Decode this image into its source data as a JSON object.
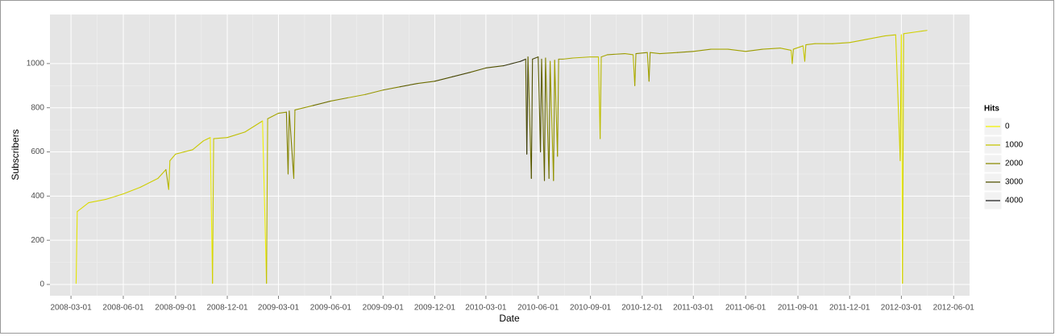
{
  "chart_data": {
    "type": "line",
    "x_label": "Date",
    "y_label": "Subscribers",
    "x": [
      "2008-03-10",
      "2008-03-12",
      "2008-04-01",
      "2008-05-01",
      "2008-06-01",
      "2008-07-01",
      "2008-08-01",
      "2008-08-15",
      "2008-08-20",
      "2008-08-22",
      "2008-09-01",
      "2008-10-01",
      "2008-10-20",
      "2008-11-01",
      "2008-11-05",
      "2008-11-07",
      "2008-12-01",
      "2009-01-01",
      "2009-02-01",
      "2009-02-08",
      "2009-02-10",
      "2009-03-01",
      "2009-03-15",
      "2009-03-18",
      "2009-03-20",
      "2009-03-28",
      "2009-03-30",
      "2009-05-01",
      "2009-06-01",
      "2009-07-01",
      "2009-08-01",
      "2009-09-01",
      "2009-10-01",
      "2009-11-01",
      "2009-12-01",
      "2010-01-01",
      "2010-02-01",
      "2010-03-01",
      "2010-04-01",
      "2010-05-01",
      "2010-05-10",
      "2010-05-12",
      "2010-05-14",
      "2010-05-20",
      "2010-05-22",
      "2010-06-01",
      "2010-06-05",
      "2010-06-07",
      "2010-06-12",
      "2010-06-14",
      "2010-06-20",
      "2010-06-22",
      "2010-06-28",
      "2010-06-30",
      "2010-07-05",
      "2010-07-07",
      "2010-07-15",
      "2010-08-01",
      "2010-09-01",
      "2010-09-15",
      "2010-09-18",
      "2010-09-20",
      "2010-10-01",
      "2010-11-01",
      "2010-11-15",
      "2010-11-18",
      "2010-11-20",
      "2010-12-10",
      "2010-12-13",
      "2010-12-15",
      "2011-01-01",
      "2011-02-01",
      "2011-03-01",
      "2011-04-01",
      "2011-05-01",
      "2011-06-01",
      "2011-07-01",
      "2011-08-01",
      "2011-08-20",
      "2011-08-22",
      "2011-08-24",
      "2011-09-10",
      "2011-09-13",
      "2011-09-15",
      "2011-10-01",
      "2011-11-01",
      "2011-12-01",
      "2012-01-01",
      "2012-02-01",
      "2012-02-20",
      "2012-02-28",
      "2012-03-01",
      "2012-03-03",
      "2012-03-05",
      "2012-04-01",
      "2012-04-15"
    ],
    "values": [
      5,
      330,
      370,
      385,
      410,
      440,
      480,
      520,
      430,
      560,
      590,
      610,
      650,
      665,
      5,
      660,
      665,
      690,
      740,
      5,
      750,
      775,
      780,
      500,
      785,
      480,
      790,
      810,
      830,
      845,
      860,
      880,
      895,
      910,
      920,
      940,
      960,
      980,
      990,
      1010,
      1020,
      590,
      1030,
      480,
      1020,
      1030,
      600,
      1020,
      470,
      1025,
      480,
      1010,
      470,
      1015,
      580,
      1020,
      1020,
      1025,
      1030,
      1030,
      660,
      1030,
      1040,
      1045,
      1040,
      900,
      1045,
      1050,
      920,
      1050,
      1045,
      1050,
      1055,
      1065,
      1065,
      1055,
      1065,
      1070,
      1060,
      1000,
      1065,
      1080,
      1010,
      1085,
      1090,
      1090,
      1095,
      1110,
      1125,
      1130,
      560,
      1130,
      5,
      1135,
      1145,
      1150
    ],
    "hits": [
      0,
      300,
      500,
      600,
      700,
      700,
      800,
      1000,
      1500,
      900,
      900,
      1000,
      900,
      800,
      0,
      900,
      1000,
      1100,
      1000,
      0,
      1200,
      1500,
      1800,
      2200,
      2000,
      2200,
      1800,
      1800,
      2500,
      2000,
      1500,
      1800,
      2200,
      2800,
      2500,
      3000,
      3200,
      2800,
      3000,
      3500,
      3800,
      2800,
      3500,
      2500,
      3000,
      3200,
      2800,
      3000,
      2500,
      2800,
      2000,
      2500,
      1500,
      2000,
      1500,
      1800,
      1800,
      1500,
      1300,
      1200,
      800,
      1200,
      1500,
      1800,
      1500,
      1200,
      1600,
      2000,
      1500,
      1800,
      1700,
      1800,
      2000,
      1800,
      1500,
      1600,
      1700,
      1500,
      1300,
      900,
      1300,
      1200,
      800,
      1200,
      1300,
      1300,
      1200,
      1100,
      1000,
      1000,
      600,
      900,
      0,
      800,
      700,
      800
    ],
    "xlim": [
      "2008-01-24",
      "2012-06-29"
    ],
    "xticks": [
      "2008-03-01",
      "2008-06-01",
      "2008-09-01",
      "2008-12-01",
      "2009-03-01",
      "2009-06-01",
      "2009-09-01",
      "2009-12-01",
      "2010-03-01",
      "2010-06-01",
      "2010-09-01",
      "2010-12-01",
      "2011-03-01",
      "2011-06-01",
      "2011-09-01",
      "2011-12-01",
      "2012-03-01",
      "2012-06-01"
    ],
    "ylim": [
      -51,
      1222
    ],
    "yticks": [
      0,
      200,
      400,
      600,
      800,
      1000
    ],
    "grid": true,
    "legend": {
      "title": "Hits",
      "position": "right",
      "breaks": [
        0,
        1000,
        2000,
        3000,
        4000
      ],
      "colors": [
        "#f2f200",
        "#c4c400",
        "#8a8a00",
        "#505000",
        "#1c1c1c"
      ]
    }
  }
}
